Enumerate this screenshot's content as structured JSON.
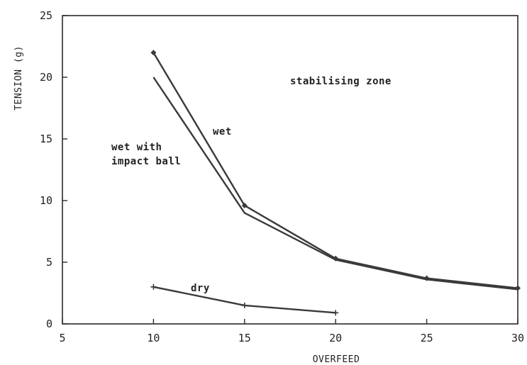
{
  "chart_data": {
    "type": "line",
    "xlabel": "OVERFEED",
    "ylabel": "TENSION (g)",
    "xlim": [
      5,
      30
    ],
    "ylim": [
      0,
      25
    ],
    "xticks": [
      5,
      10,
      15,
      20,
      25,
      30
    ],
    "yticks": [
      0,
      5,
      10,
      15,
      20,
      25
    ],
    "grid": false,
    "series": [
      {
        "name": "wet",
        "x": [
          10,
          15,
          20,
          25,
          30
        ],
        "y": [
          22,
          9.6,
          5.3,
          3.7,
          2.9
        ],
        "marker": "diamond"
      },
      {
        "name": "wet with impact ball",
        "x": [
          10,
          15,
          20,
          25,
          30
        ],
        "y": [
          20,
          9.0,
          5.2,
          3.6,
          2.8
        ],
        "marker": "none"
      },
      {
        "name": "dry",
        "x": [
          10,
          15,
          20
        ],
        "y": [
          3.0,
          1.5,
          0.9
        ],
        "marker": "plus"
      }
    ],
    "annotations": {
      "zone": "stabilising zone",
      "wet": "wet",
      "wet_with_1": "wet with",
      "wet_with_2": "impact ball",
      "dry": "dry"
    },
    "line_color": "#3a3a3a"
  }
}
